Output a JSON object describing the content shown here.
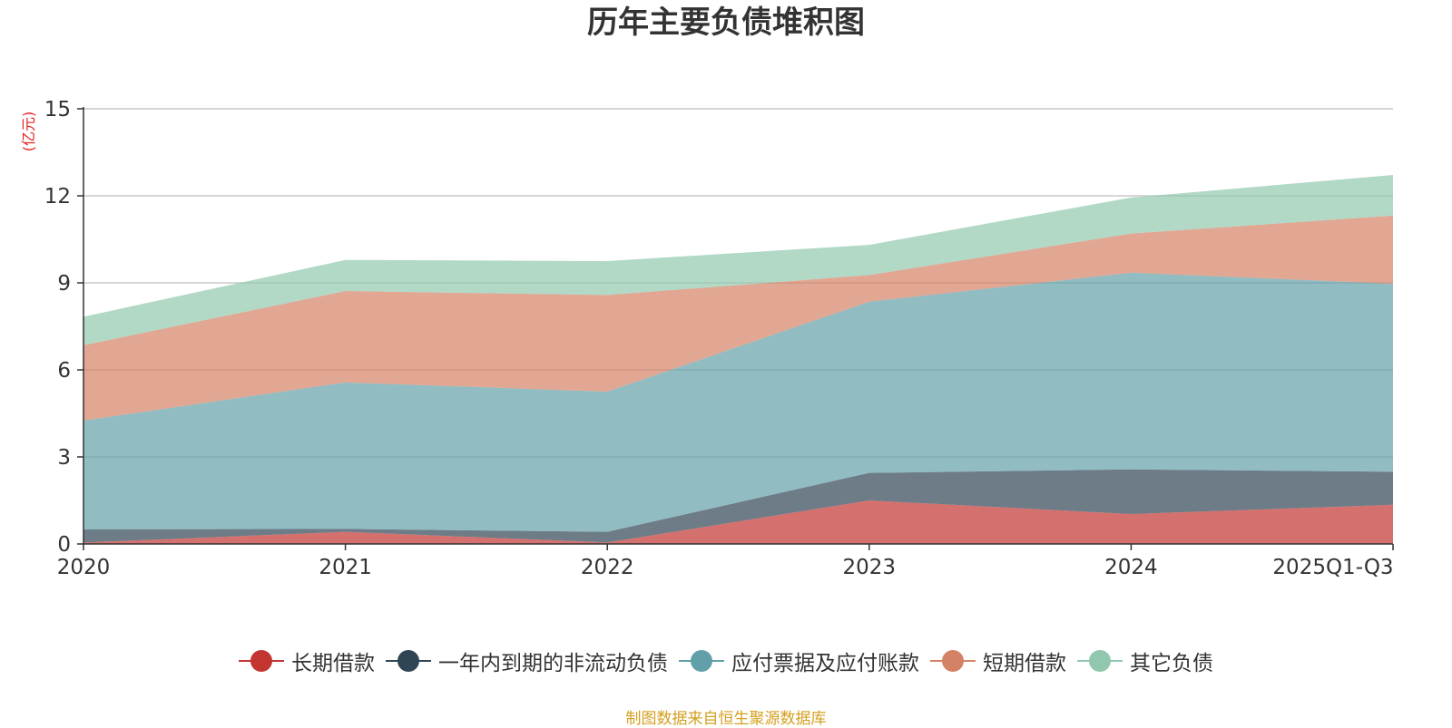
{
  "title": "历年主要负债堆积图",
  "source": "制图数据来自恒生聚源数据库",
  "chart_data": {
    "type": "area",
    "stacked": true,
    "title": "历年主要负债堆积图",
    "ylabel": "(亿元)",
    "xlabel": "",
    "categories": [
      "2020",
      "2021",
      "2022",
      "2023",
      "2024",
      "2025Q1-Q3"
    ],
    "ylim": [
      0,
      15
    ],
    "yticks": [
      0,
      3,
      6,
      9,
      12,
      15
    ],
    "grid": true,
    "legend_position": "bottom",
    "series": [
      {
        "name": "长期借款",
        "color": "#c23531",
        "values": [
          0.05,
          0.42,
          0.05,
          1.5,
          1.03,
          1.35
        ]
      },
      {
        "name": "一年内到期的非流动负债",
        "color": "#2f4554",
        "values": [
          0.45,
          0.1,
          0.37,
          0.95,
          1.54,
          1.14
        ]
      },
      {
        "name": "应付票据及应付账款",
        "color": "#61a0a8",
        "values": [
          3.75,
          5.05,
          4.83,
          5.9,
          6.78,
          6.48
        ]
      },
      {
        "name": "短期借款",
        "color": "#d48265",
        "values": [
          2.6,
          3.15,
          3.33,
          0.92,
          1.35,
          2.35
        ]
      },
      {
        "name": "其它负债",
        "color": "#91c7ae",
        "values": [
          0.98,
          1.07,
          1.17,
          1.04,
          1.24,
          1.4
        ]
      }
    ]
  }
}
